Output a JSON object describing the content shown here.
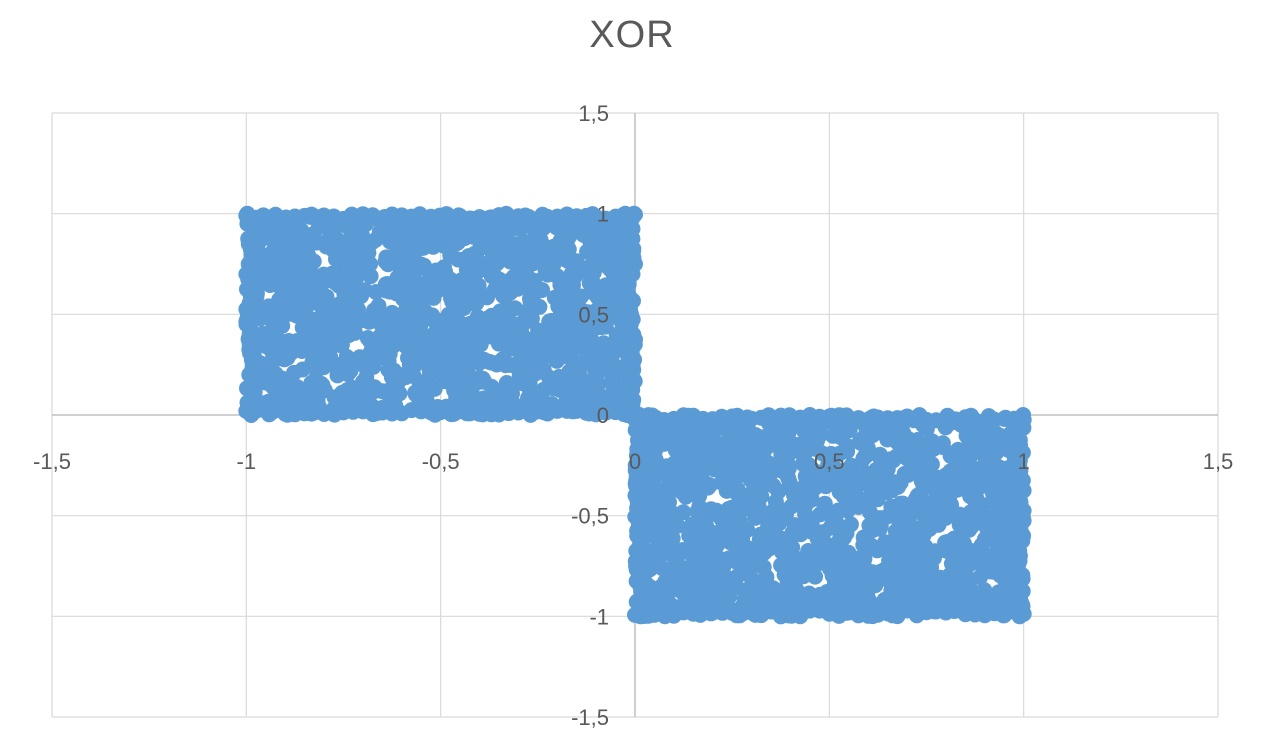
{
  "chart_data": {
    "type": "scatter",
    "title": "XOR",
    "xlabel": "",
    "ylabel": "",
    "xlim": [
      -1.5,
      1.5
    ],
    "ylim": [
      -1.5,
      1.5
    ],
    "x_ticks": [
      "-1,5",
      "-1",
      "-0,5",
      "0",
      "0,5",
      "1",
      "1,5"
    ],
    "y_ticks": [
      "-1,5",
      "-1",
      "-0,5",
      "0",
      "0,5",
      "1",
      "1,5"
    ],
    "x_tick_values": [
      -1.5,
      -1,
      -0.5,
      0,
      0.5,
      1,
      1.5
    ],
    "y_tick_values": [
      -1.5,
      -1,
      -0.5,
      0,
      0.5,
      1,
      1.5
    ],
    "grid": true,
    "legend": "none",
    "marker_color": "#5b9bd5",
    "series": [
      {
        "regions": [
          {
            "x": [
              -1,
              0
            ],
            "y": [
              0,
              1
            ]
          },
          {
            "x": [
              0,
              1
            ],
            "y": [
              -1,
              0
            ]
          }
        ],
        "points_per_region": 1300,
        "distribution": "uniform"
      }
    ]
  }
}
